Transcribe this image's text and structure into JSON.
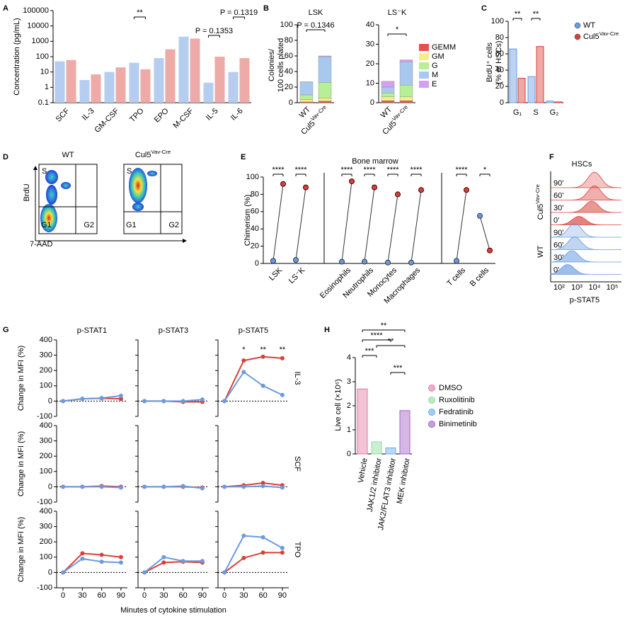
{
  "chart_data": [
    {
      "panel": "A",
      "type": "bar",
      "ylabel": "Concentration (pg/mL)",
      "log_scale": true,
      "categories": [
        "SCF",
        "IL-3",
        "GM-CSF",
        "TPO",
        "EPO",
        "M-CSF",
        "IL-5",
        "IL-6"
      ],
      "ylim": [
        0.1,
        100000
      ],
      "yticks": [
        0.1,
        1,
        10,
        100,
        1000,
        10000,
        100000
      ],
      "series": [
        {
          "color": "#b5cdef",
          "values": [
            50,
            3,
            10,
            40,
            80,
            2000,
            2,
            10
          ]
        },
        {
          "color": "#eeaaa6",
          "values": [
            60,
            7,
            20,
            15,
            300,
            1500,
            100,
            80
          ]
        }
      ],
      "annotations": [
        "**",
        "P = 0.1353",
        "P = 0.1319"
      ]
    },
    {
      "panel": "B",
      "type": "stacked_bar",
      "ylabel": [
        "Colonies/",
        "100 cells plated"
      ],
      "categories": [
        "WT",
        {
          "text": "Cul5",
          "sup": "Vav-Cre"
        }
      ],
      "legend": [
        {
          "name": "GEMM",
          "color": "#e8504a"
        },
        {
          "name": "GM",
          "color": "#f5ec8a"
        },
        {
          "name": "G",
          "color": "#b6ef96"
        },
        {
          "name": "M",
          "color": "#a9c8ef"
        },
        {
          "name": "E",
          "color": "#d59ef0"
        }
      ],
      "subplots": [
        {
          "title": "LSK",
          "ylim": [
            0,
            100
          ],
          "yticks": [
            0,
            20,
            40,
            60,
            80,
            100
          ],
          "annotation": "P = 0.1346",
          "series": [
            {
              "values": [
                1,
                2
              ]
            },
            {
              "values": [
                3,
                4
              ]
            },
            {
              "values": [
                6,
                20
              ]
            },
            {
              "values": [
                17,
                33
              ]
            },
            {
              "values": [
                0,
                1
              ]
            }
          ]
        },
        {
          "title": "LS⁻K",
          "ylim": [
            0,
            40
          ],
          "yticks": [
            0,
            10,
            20,
            30,
            40
          ],
          "annotation": "*",
          "series": [
            {
              "values": [
                1,
                1
              ]
            },
            {
              "values": [
                2,
                2
              ]
            },
            {
              "values": [
                2,
                6
              ]
            },
            {
              "values": [
                3,
                12
              ]
            },
            {
              "values": [
                3,
                1
              ]
            }
          ]
        }
      ]
    },
    {
      "panel": "C",
      "type": "bar",
      "ylabel": [
        "BrdU⁺ cells",
        "(% of HSCs)"
      ],
      "categories": [
        "G₁",
        "S",
        "G₂"
      ],
      "ylim": [
        0,
        100
      ],
      "yticks": [
        0,
        20,
        40,
        60,
        80,
        100
      ],
      "series": [
        {
          "name": "WT",
          "color": "#6a9be0",
          "values": [
            66,
            32,
            2
          ]
        },
        {
          "name": {
            "text": "Cul5",
            "sup": "Vav-Cre"
          },
          "color": "#d9403a",
          "values": [
            30,
            69,
            1
          ]
        }
      ],
      "annotations": [
        "**",
        "**"
      ],
      "legend": true
    },
    {
      "panel": "D",
      "type": "flow_cytometry",
      "xlabel": "7-AAD",
      "ylabel": "BrdU",
      "plots": [
        {
          "title": "WT",
          "gates": [
            "S",
            "G1",
            "G2"
          ]
        },
        {
          "title": {
            "text": "Cul5",
            "sup": "Vav-Cre"
          },
          "gates": [
            "S",
            "G1",
            "G2"
          ]
        }
      ]
    },
    {
      "panel": "E",
      "type": "paired_dot",
      "title": "Bone marrow",
      "ylabel": "Chimerism (%)",
      "categories": [
        "LSK",
        "LS⁻K",
        "Eosinophils",
        "Neutrophils",
        "Monocytes",
        "Macrophages",
        "T cells",
        "B cells"
      ],
      "ylim": [
        0,
        100
      ],
      "yticks": [
        0,
        20,
        40,
        60,
        80,
        100
      ],
      "series": [
        {
          "color": "#6a9be0",
          "values": [
            3,
            4,
            2,
            2,
            1,
            1,
            3,
            55
          ]
        },
        {
          "color": "#d9403a",
          "values": [
            92,
            88,
            95,
            88,
            80,
            85,
            85,
            15
          ]
        }
      ],
      "annotations": [
        "****",
        "****",
        "****",
        "****",
        "****",
        "****",
        "****",
        "*"
      ]
    },
    {
      "panel": "F",
      "type": "ridgeline",
      "title": "HSCs",
      "xlabel": "p-STAT5",
      "xtick_labels": [
        "10²",
        "10³",
        "10⁴",
        "10⁵"
      ],
      "groups": [
        {
          "name": {
            "text": "Cul5",
            "sup": "Vav-Cre"
          },
          "color": "#d9403a",
          "labels": [
            "90'",
            "60'",
            "30'",
            "0'"
          ]
        },
        {
          "name": "WT",
          "color": "#6a9be0",
          "labels": [
            "90'",
            "60'",
            "30'",
            "0'"
          ]
        }
      ]
    },
    {
      "panel": "G",
      "type": "line",
      "xlabel": "Minutes of cytokine stimulation",
      "ylabel": "Change in MFI (%)",
      "columns": [
        "p-STAT1",
        "p-STAT3",
        "p-STAT5"
      ],
      "rows": [
        "IL-3",
        "SCF",
        "TPO"
      ],
      "x": [
        0,
        30,
        60,
        90
      ],
      "xlim": [
        -10,
        100
      ],
      "xticks": [
        0,
        30,
        60,
        90
      ],
      "ylim": [
        -100,
        400
      ],
      "yticks": [
        -100,
        0,
        100,
        200,
        300,
        400
      ],
      "subplots": [
        {
          "series": [
            {
              "color": "#d9403a",
              "values": [
                0,
                15,
                18,
                15
              ]
            },
            {
              "color": "#6a9be0",
              "values": [
                0,
                15,
                20,
                35
              ]
            }
          ]
        },
        {
          "series": [
            {
              "color": "#d9403a",
              "values": [
                0,
                0,
                -5,
                -5
              ]
            },
            {
              "color": "#6a9be0",
              "values": [
                0,
                0,
                0,
                10
              ]
            }
          ]
        },
        {
          "series": [
            {
              "color": "#d9403a",
              "values": [
                0,
                265,
                290,
                280
              ]
            },
            {
              "color": "#6a9be0",
              "values": [
                0,
                190,
                100,
                40
              ]
            }
          ],
          "annotations": [
            "*",
            "**",
            "**"
          ]
        },
        {
          "series": [
            {
              "color": "#d9403a",
              "values": [
                0,
                0,
                5,
                0
              ]
            },
            {
              "color": "#6a9be0",
              "values": [
                0,
                0,
                0,
                -5
              ]
            }
          ]
        },
        {
          "series": [
            {
              "color": "#d9403a",
              "values": [
                0,
                0,
                0,
                -5
              ]
            },
            {
              "color": "#6a9be0",
              "values": [
                0,
                0,
                5,
                -10
              ]
            }
          ]
        },
        {
          "series": [
            {
              "color": "#d9403a",
              "values": [
                0,
                10,
                25,
                10
              ]
            },
            {
              "color": "#6a9be0",
              "values": [
                0,
                0,
                5,
                -5
              ]
            }
          ]
        },
        {
          "series": [
            {
              "color": "#d9403a",
              "values": [
                0,
                125,
                115,
                100
              ]
            },
            {
              "color": "#6a9be0",
              "values": [
                0,
                90,
                70,
                65
              ]
            }
          ]
        },
        {
          "series": [
            {
              "color": "#d9403a",
              "values": [
                0,
                65,
                70,
                65
              ]
            },
            {
              "color": "#6a9be0",
              "values": [
                0,
                100,
                75,
                75
              ]
            }
          ]
        },
        {
          "series": [
            {
              "color": "#d9403a",
              "values": [
                0,
                95,
                130,
                130
              ]
            },
            {
              "color": "#6a9be0",
              "values": [
                0,
                240,
                230,
                160
              ]
            }
          ]
        }
      ]
    },
    {
      "panel": "H",
      "type": "bar",
      "ylabel": "Live cell (×10⁶)",
      "categories": [
        "Vehicle",
        "JAK1/2 inhibitor",
        "JAK2/FLAT3 inhibitor",
        "MEK inhibitor"
      ],
      "values": [
        2.7,
        0.5,
        0.25,
        1.8
      ],
      "colors": [
        "#e07aa0",
        "#8fdc9c",
        "#6aa8e8",
        "#a160c8"
      ],
      "legend": [
        "DMSO",
        "Ruxolitinib",
        "Fedratinib",
        "Binimetinib"
      ],
      "ylim": [
        0,
        4
      ],
      "yticks": [
        0,
        1,
        2,
        3,
        4
      ],
      "annotations": [
        "**",
        "****",
        "**",
        "***",
        "***"
      ]
    }
  ]
}
